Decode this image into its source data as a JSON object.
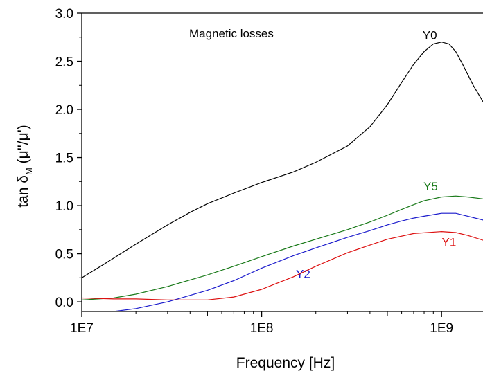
{
  "chart_data": {
    "type": "line",
    "title": "",
    "annotation": "Magnetic losses",
    "xlabel": "Frequency [Hz]",
    "ylabel_main": "tan δ",
    "ylabel_sub": "M",
    "ylabel_tail": " (μ''/μ')",
    "x_scale": "log",
    "xlim": [
      10000000.0,
      1700000000.0
    ],
    "ylim": [
      -0.1,
      3.0
    ],
    "grid": false,
    "legend": "none (series labeled inline)",
    "x_ticks": [
      {
        "value": 10000000.0,
        "label": "1E7"
      },
      {
        "value": 100000000.0,
        "label": "1E8"
      },
      {
        "value": 1000000000.0,
        "label": "1E9"
      }
    ],
    "y_ticks": [
      {
        "value": 0.0,
        "label": "0.0"
      },
      {
        "value": 0.5,
        "label": "0.5"
      },
      {
        "value": 1.0,
        "label": "1.0"
      },
      {
        "value": 1.5,
        "label": "1.5"
      },
      {
        "value": 2.0,
        "label": "2.0"
      },
      {
        "value": 2.5,
        "label": "2.5"
      },
      {
        "value": 3.0,
        "label": "3.0"
      }
    ],
    "series": [
      {
        "name": "Y0",
        "color": "#000000",
        "label_at": [
          860000000.0,
          2.73
        ],
        "points": [
          [
            10000000.0,
            0.25
          ],
          [
            13000000.0,
            0.38
          ],
          [
            20000000.0,
            0.6
          ],
          [
            30000000.0,
            0.8
          ],
          [
            40000000.0,
            0.93
          ],
          [
            50000000.0,
            1.02
          ],
          [
            70000000.0,
            1.13
          ],
          [
            100000000.0,
            1.24
          ],
          [
            150000000.0,
            1.35
          ],
          [
            200000000.0,
            1.45
          ],
          [
            300000000.0,
            1.62
          ],
          [
            400000000.0,
            1.82
          ],
          [
            500000000.0,
            2.05
          ],
          [
            600000000.0,
            2.28
          ],
          [
            700000000.0,
            2.47
          ],
          [
            800000000.0,
            2.6
          ],
          [
            900000000.0,
            2.68
          ],
          [
            1000000000.0,
            2.7
          ],
          [
            1100000000.0,
            2.68
          ],
          [
            1200000000.0,
            2.6
          ],
          [
            1300000000.0,
            2.48
          ],
          [
            1500000000.0,
            2.25
          ],
          [
            1700000000.0,
            2.08
          ]
        ]
      },
      {
        "name": "Y5",
        "color": "#1a7a1a",
        "label_at": [
          870000000.0,
          1.16
        ],
        "points": [
          [
            10000000.0,
            0.02
          ],
          [
            15000000.0,
            0.04
          ],
          [
            20000000.0,
            0.08
          ],
          [
            30000000.0,
            0.16
          ],
          [
            50000000.0,
            0.28
          ],
          [
            70000000.0,
            0.37
          ],
          [
            100000000.0,
            0.47
          ],
          [
            150000000.0,
            0.58
          ],
          [
            200000000.0,
            0.65
          ],
          [
            300000000.0,
            0.75
          ],
          [
            400000000.0,
            0.83
          ],
          [
            500000000.0,
            0.9
          ],
          [
            600000000.0,
            0.96
          ],
          [
            700000000.0,
            1.01
          ],
          [
            800000000.0,
            1.05
          ],
          [
            1000000000.0,
            1.09
          ],
          [
            1200000000.0,
            1.1
          ],
          [
            1400000000.0,
            1.09
          ],
          [
            1700000000.0,
            1.07
          ]
        ]
      },
      {
        "name": "Y2",
        "color": "#1a1acc",
        "label_at": [
          170000000.0,
          0.25
        ],
        "points": [
          [
            15000000.0,
            -0.1
          ],
          [
            20000000.0,
            -0.07
          ],
          [
            30000000.0,
            0.0
          ],
          [
            50000000.0,
            0.12
          ],
          [
            70000000.0,
            0.22
          ],
          [
            100000000.0,
            0.35
          ],
          [
            150000000.0,
            0.48
          ],
          [
            200000000.0,
            0.56
          ],
          [
            300000000.0,
            0.67
          ],
          [
            400000000.0,
            0.74
          ],
          [
            500000000.0,
            0.8
          ],
          [
            600000000.0,
            0.84
          ],
          [
            700000000.0,
            0.87
          ],
          [
            800000000.0,
            0.89
          ],
          [
            1000000000.0,
            0.92
          ],
          [
            1200000000.0,
            0.92
          ],
          [
            1400000000.0,
            0.89
          ],
          [
            1700000000.0,
            0.85
          ]
        ]
      },
      {
        "name": "Y1",
        "color": "#dd1111",
        "label_at": [
          1100000000.0,
          0.58
        ],
        "points": [
          [
            10000000.0,
            0.04
          ],
          [
            15000000.0,
            0.03
          ],
          [
            20000000.0,
            0.03
          ],
          [
            30000000.0,
            0.02
          ],
          [
            40000000.0,
            0.02
          ],
          [
            50000000.0,
            0.02
          ],
          [
            70000000.0,
            0.05
          ],
          [
            100000000.0,
            0.13
          ],
          [
            150000000.0,
            0.26
          ],
          [
            200000000.0,
            0.37
          ],
          [
            300000000.0,
            0.51
          ],
          [
            400000000.0,
            0.59
          ],
          [
            500000000.0,
            0.65
          ],
          [
            700000000.0,
            0.71
          ],
          [
            1000000000.0,
            0.73
          ],
          [
            1200000000.0,
            0.72
          ],
          [
            1400000000.0,
            0.69
          ],
          [
            1700000000.0,
            0.64
          ]
        ]
      }
    ]
  }
}
